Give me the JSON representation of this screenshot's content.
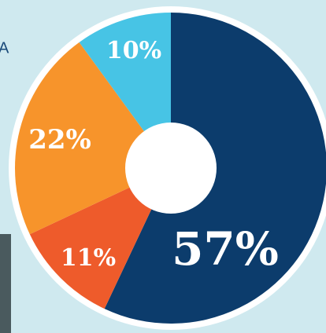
{
  "side_text": "A",
  "chart_data": {
    "type": "donut",
    "categories": [
      null,
      null,
      null,
      null
    ],
    "values": [
      57,
      11,
      22,
      10
    ],
    "value_labels": [
      "57%",
      "11%",
      "22%",
      "10%"
    ],
    "colors": [
      "#0c3c6c",
      "#ee5b2b",
      "#f7942b",
      "#47c4e5"
    ]
  }
}
